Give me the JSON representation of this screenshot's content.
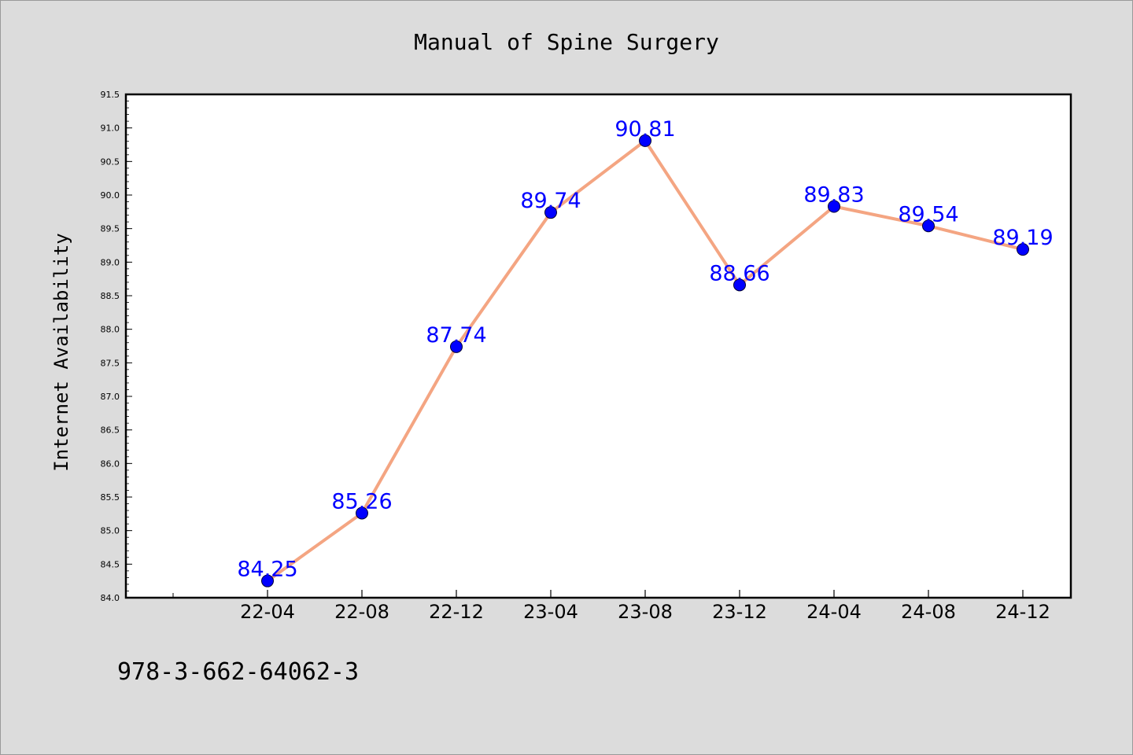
{
  "chart_data": {
    "type": "line",
    "title": "Manual of Spine Surgery",
    "ylabel": "Internet Availability",
    "xlabel": "",
    "categories": [
      "22-04",
      "22-08",
      "22-12",
      "23-04",
      "23-08",
      "23-12",
      "24-04",
      "24-08",
      "24-12"
    ],
    "values": [
      84.25,
      85.26,
      87.74,
      89.74,
      90.81,
      88.66,
      89.83,
      89.54,
      89.19
    ],
    "data_labels": [
      "84.25",
      "85.26",
      "87.74",
      "89.74",
      "90.81",
      "88.66",
      "89.83",
      "89.54",
      "89.19"
    ],
    "ylim": [
      84.0,
      91.5
    ],
    "yticks": [
      "84.0",
      "84.5",
      "85.0",
      "85.5",
      "86.0",
      "86.5",
      "87.0",
      "87.5",
      "88.0",
      "88.5",
      "89.0",
      "89.5",
      "90.0",
      "90.5",
      "91.0",
      "91.5"
    ],
    "grid": false,
    "line_color": "#f4a582",
    "marker_color": "#0000ff",
    "label_color": "#0000ff"
  },
  "footer": {
    "isbn": "978-3-662-64062-3"
  }
}
